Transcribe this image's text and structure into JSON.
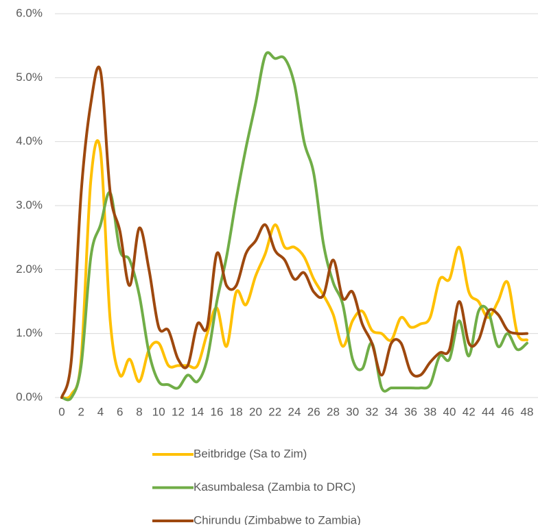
{
  "chart_data": {
    "type": "line",
    "x": [
      0,
      1,
      2,
      3,
      4,
      5,
      6,
      7,
      8,
      9,
      10,
      11,
      12,
      13,
      14,
      15,
      16,
      17,
      18,
      19,
      20,
      21,
      22,
      23,
      24,
      25,
      26,
      27,
      28,
      29,
      30,
      31,
      32,
      33,
      34,
      35,
      36,
      37,
      38,
      39,
      40,
      41,
      42,
      43,
      44,
      45,
      46,
      47,
      48
    ],
    "series": [
      {
        "name": "Beitbridge (Sa to Zim)",
        "color": "#ffc000",
        "values": [
          0,
          0.05,
          0.6,
          3.4,
          3.85,
          1.2,
          0.35,
          0.6,
          0.25,
          0.75,
          0.85,
          0.5,
          0.5,
          0.5,
          0.5,
          1.0,
          1.4,
          0.8,
          1.65,
          1.45,
          1.9,
          2.25,
          2.7,
          2.35,
          2.35,
          2.2,
          1.85,
          1.6,
          1.3,
          0.8,
          1.2,
          1.35,
          1.05,
          1.0,
          0.9,
          1.25,
          1.1,
          1.15,
          1.25,
          1.85,
          1.85,
          2.35,
          1.65,
          1.5,
          1.25,
          1.5,
          1.8,
          1.0,
          0.9
        ]
      },
      {
        "name": "Kasumbalesa (Zambia to DRC)",
        "color": "#70ad47",
        "values": [
          0,
          0,
          0.5,
          2.2,
          2.7,
          3.2,
          2.3,
          2.15,
          1.6,
          0.7,
          0.25,
          0.2,
          0.15,
          0.35,
          0.25,
          0.6,
          1.5,
          2.2,
          3.1,
          3.9,
          4.6,
          5.35,
          5.3,
          5.3,
          4.9,
          4.0,
          3.5,
          2.4,
          1.8,
          1.45,
          0.6,
          0.45,
          0.85,
          0.15,
          0.15,
          0.15,
          0.15,
          0.15,
          0.2,
          0.65,
          0.6,
          1.2,
          0.65,
          1.35,
          1.35,
          0.8,
          1.0,
          0.75,
          0.85
        ]
      },
      {
        "name": "Chirundu (Zimbabwe to Zambia)",
        "color": "#9e480e",
        "values": [
          0,
          0.6,
          3.2,
          4.6,
          5.1,
          3.2,
          2.6,
          1.75,
          2.65,
          2.0,
          1.1,
          1.05,
          0.6,
          0.5,
          1.15,
          1.1,
          2.25,
          1.75,
          1.75,
          2.25,
          2.45,
          2.7,
          2.3,
          2.15,
          1.85,
          1.95,
          1.65,
          1.6,
          2.15,
          1.55,
          1.65,
          1.15,
          0.85,
          0.35,
          0.85,
          0.85,
          0.4,
          0.35,
          0.55,
          0.7,
          0.75,
          1.5,
          0.85,
          0.9,
          1.35,
          1.3,
          1.05,
          1.0,
          1.0
        ]
      }
    ],
    "xlim": [
      0,
      48
    ],
    "xticks": [
      0,
      2,
      4,
      6,
      8,
      10,
      12,
      14,
      16,
      18,
      20,
      22,
      24,
      26,
      28,
      30,
      32,
      34,
      36,
      38,
      40,
      42,
      44,
      46,
      48
    ],
    "ylim": [
      0,
      6
    ],
    "yticks": [
      {
        "value": 0,
        "label": "0.0%"
      },
      {
        "value": 1,
        "label": "1.0%"
      },
      {
        "value": 2,
        "label": "2.0%"
      },
      {
        "value": 3,
        "label": "3.0%"
      },
      {
        "value": 4,
        "label": "4.0%"
      },
      {
        "value": 5,
        "label": "5.0%"
      },
      {
        "value": 6,
        "label": "6.0%"
      }
    ],
    "grid": true,
    "legend": "bottom"
  }
}
